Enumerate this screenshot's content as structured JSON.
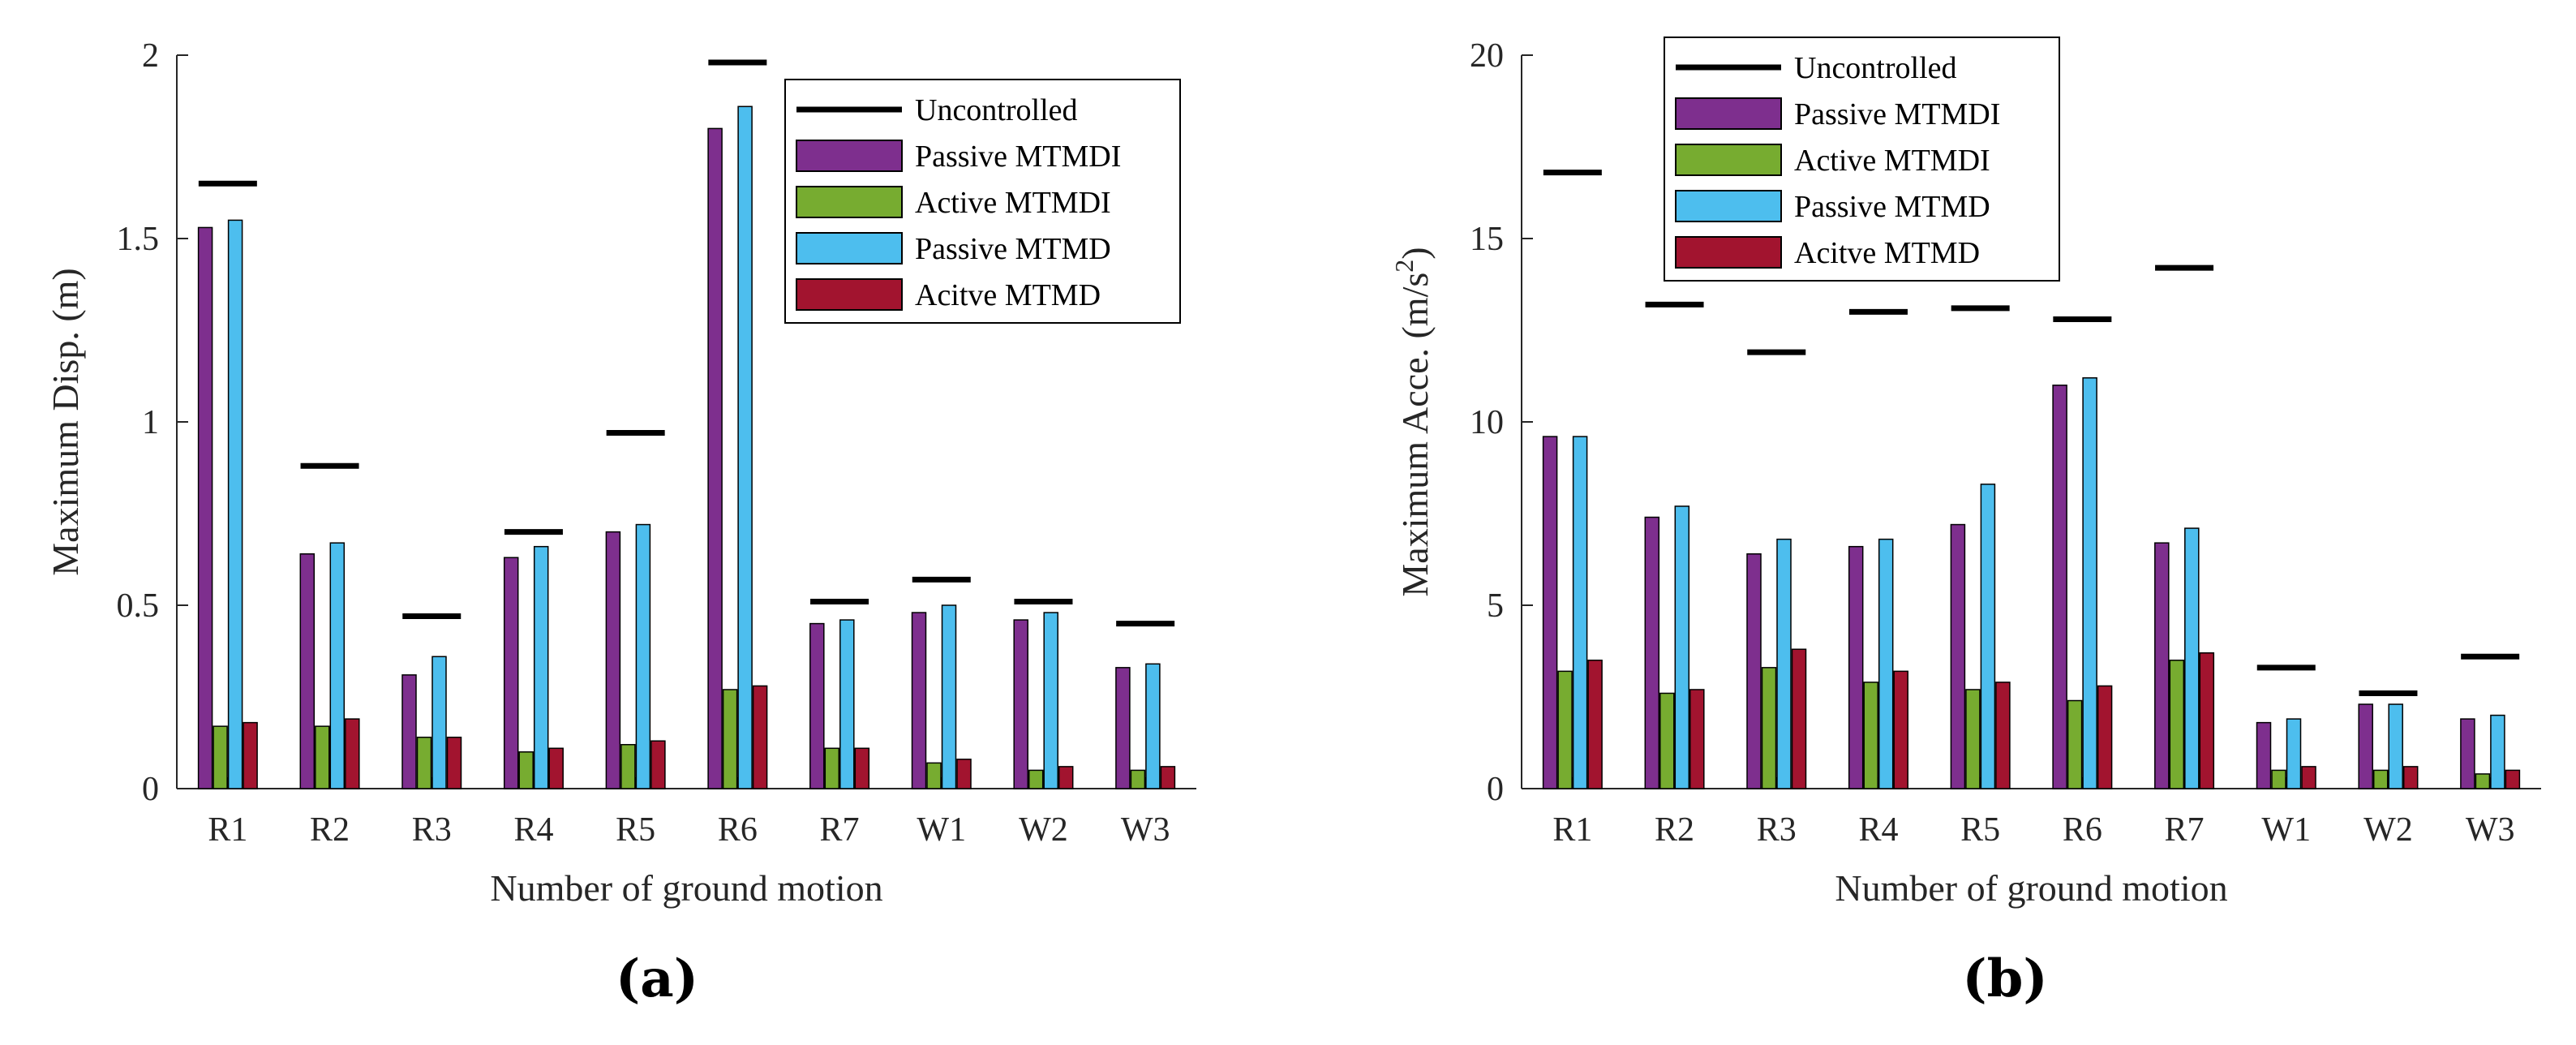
{
  "figure_labels": [
    "(a)",
    "(b)"
  ],
  "chart_data": [
    {
      "type": "bar",
      "panel": "(a)",
      "panel_letter": "a",
      "title": "",
      "xlabel": "Number of ground motion",
      "ylabel": "Maximum Disp. (m)",
      "ylim": [
        0,
        2
      ],
      "yticks": [
        0,
        0.5,
        1,
        1.5,
        2
      ],
      "ytick_labels": [
        "0",
        "0.5",
        "1",
        "1.5",
        "2"
      ],
      "categories": [
        "R1",
        "R2",
        "R3",
        "R4",
        "R5",
        "R6",
        "R7",
        "W1",
        "W2",
        "W3"
      ],
      "legend": [
        "Uncontrolled",
        "Passive MTMDI",
        "Active MTMDI",
        "Passive MTMD",
        "Acitve MTMD"
      ],
      "legend_position": "top-right",
      "uncontrolled": {
        "name": "Uncontrolled",
        "color": "#000000",
        "values": [
          1.65,
          0.88,
          0.47,
          0.7,
          0.97,
          1.98,
          0.51,
          0.57,
          0.51,
          0.45
        ]
      },
      "series": [
        {
          "name": "Passive MTMDI",
          "color": "#7e2f8e",
          "values": [
            1.53,
            0.64,
            0.31,
            0.63,
            0.7,
            1.8,
            0.45,
            0.48,
            0.46,
            0.33
          ]
        },
        {
          "name": "Active MTMDI",
          "color": "#77ac30",
          "values": [
            0.17,
            0.17,
            0.14,
            0.1,
            0.12,
            0.27,
            0.11,
            0.07,
            0.05,
            0.05
          ]
        },
        {
          "name": "Passive MTMD",
          "color": "#4dbeee",
          "values": [
            1.55,
            0.67,
            0.36,
            0.66,
            0.72,
            1.86,
            0.46,
            0.5,
            0.48,
            0.34
          ]
        },
        {
          "name": "Acitve MTMD",
          "color": "#a2142f",
          "values": [
            0.18,
            0.19,
            0.14,
            0.11,
            0.13,
            0.28,
            0.11,
            0.08,
            0.06,
            0.06
          ]
        }
      ]
    },
    {
      "type": "bar",
      "panel": "(b)",
      "panel_letter": "b",
      "title": "",
      "xlabel": "Number of ground motion",
      "ylabel": "Maximum Acce. (m/s",
      "ylabel_sup": "2",
      "ylabel_end": ")",
      "ylim": [
        0,
        20
      ],
      "yticks": [
        0,
        5,
        10,
        15,
        20
      ],
      "ytick_labels": [
        "0",
        "5",
        "10",
        "15",
        "20"
      ],
      "categories": [
        "R1",
        "R2",
        "R3",
        "R4",
        "R5",
        "R6",
        "R7",
        "W1",
        "W2",
        "W3"
      ],
      "legend": [
        "Uncontrolled",
        "Passive MTMDI",
        "Active MTMDI",
        "Passive MTMD",
        "Acitve MTMD"
      ],
      "legend_position": "top-left",
      "uncontrolled": {
        "name": "Uncontrolled",
        "color": "#000000",
        "values": [
          16.8,
          13.2,
          11.9,
          13.0,
          13.1,
          12.8,
          14.2,
          3.3,
          2.6,
          3.6
        ]
      },
      "series": [
        {
          "name": "Passive MTMDI",
          "color": "#7e2f8e",
          "values": [
            9.6,
            7.4,
            6.4,
            6.6,
            7.2,
            11.0,
            6.7,
            1.8,
            2.3,
            1.9
          ]
        },
        {
          "name": "Active MTMDI",
          "color": "#77ac30",
          "values": [
            3.2,
            2.6,
            3.3,
            2.9,
            2.7,
            2.4,
            3.5,
            0.5,
            0.5,
            0.4
          ]
        },
        {
          "name": "Passive MTMD",
          "color": "#4dbeee",
          "values": [
            9.6,
            7.7,
            6.8,
            6.8,
            8.3,
            11.2,
            7.1,
            1.9,
            2.3,
            2.0
          ]
        },
        {
          "name": "Acitve MTMD",
          "color": "#a2142f",
          "values": [
            3.5,
            2.7,
            3.8,
            3.2,
            2.9,
            2.8,
            3.7,
            0.6,
            0.6,
            0.5
          ]
        }
      ]
    }
  ]
}
